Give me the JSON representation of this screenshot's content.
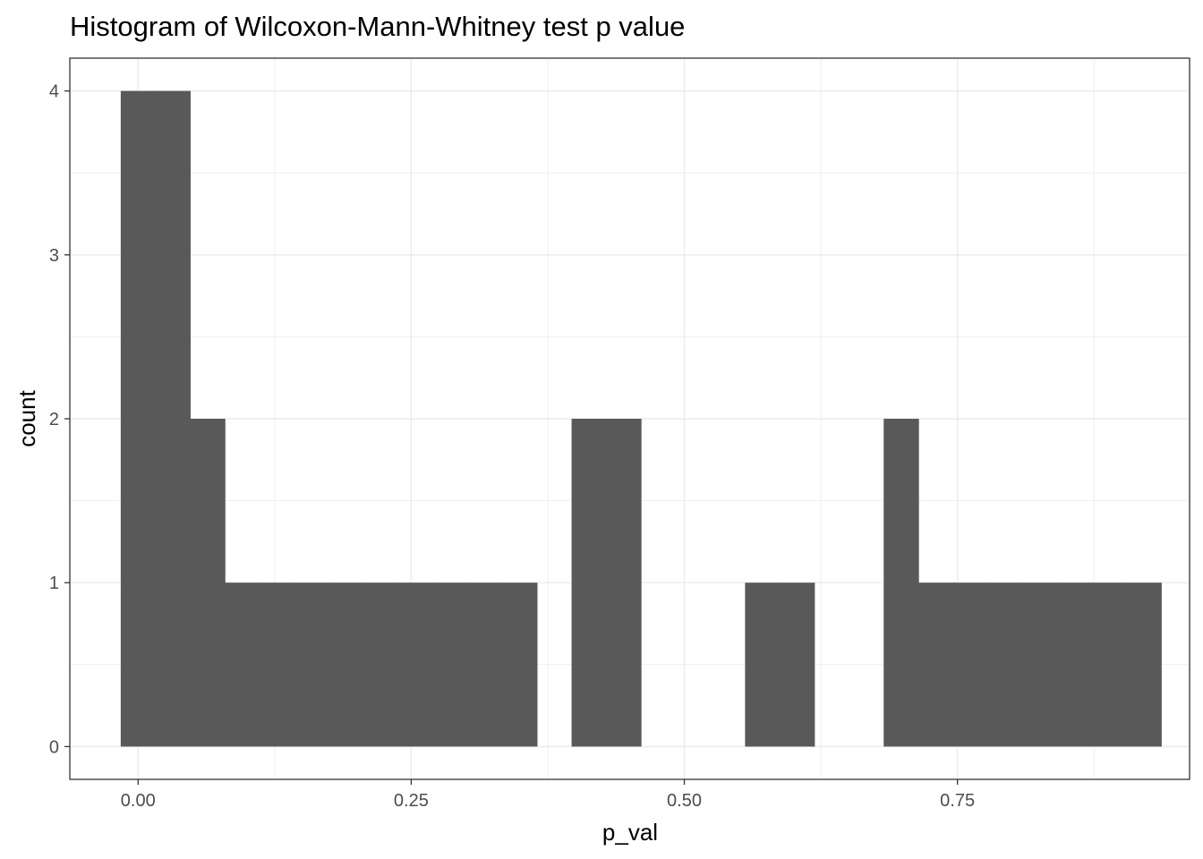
{
  "chart_data": {
    "type": "bar",
    "title": "Histogram of Wilcoxon-Mann-Whitney test p value",
    "xlabel": "p_val",
    "ylabel": "count",
    "xlim": [
      -0.0625,
      0.9625
    ],
    "ylim": [
      -0.2,
      4.2
    ],
    "x_ticks": [
      {
        "value": 0.0,
        "label": "0.00"
      },
      {
        "value": 0.25,
        "label": "0.25"
      },
      {
        "value": 0.5,
        "label": "0.50"
      },
      {
        "value": 0.75,
        "label": "0.75"
      }
    ],
    "y_ticks": [
      {
        "value": 0,
        "label": "0"
      },
      {
        "value": 1,
        "label": "1"
      },
      {
        "value": 2,
        "label": "2"
      },
      {
        "value": 3,
        "label": "3"
      },
      {
        "value": 4,
        "label": "4"
      }
    ],
    "bin_width": 0.0317,
    "bins": [
      {
        "x0": -0.0159,
        "x1": 0.0159,
        "count": 4
      },
      {
        "x0": 0.0159,
        "x1": 0.0476,
        "count": 4
      },
      {
        "x0": 0.0476,
        "x1": 0.0794,
        "count": 2
      },
      {
        "x0": 0.0794,
        "x1": 0.1111,
        "count": 1
      },
      {
        "x0": 0.1111,
        "x1": 0.1429,
        "count": 1
      },
      {
        "x0": 0.1429,
        "x1": 0.1746,
        "count": 1
      },
      {
        "x0": 0.1746,
        "x1": 0.2063,
        "count": 1
      },
      {
        "x0": 0.2063,
        "x1": 0.2381,
        "count": 1
      },
      {
        "x0": 0.2381,
        "x1": 0.2698,
        "count": 1
      },
      {
        "x0": 0.2698,
        "x1": 0.3016,
        "count": 1
      },
      {
        "x0": 0.3016,
        "x1": 0.3333,
        "count": 1
      },
      {
        "x0": 0.3333,
        "x1": 0.3651,
        "count": 1
      },
      {
        "x0": 0.3651,
        "x1": 0.3968,
        "count": 0
      },
      {
        "x0": 0.3968,
        "x1": 0.4286,
        "count": 2
      },
      {
        "x0": 0.4286,
        "x1": 0.4603,
        "count": 2
      },
      {
        "x0": 0.4603,
        "x1": 0.4921,
        "count": 0
      },
      {
        "x0": 0.4921,
        "x1": 0.5238,
        "count": 0
      },
      {
        "x0": 0.5238,
        "x1": 0.5556,
        "count": 0
      },
      {
        "x0": 0.5556,
        "x1": 0.5873,
        "count": 1
      },
      {
        "x0": 0.5873,
        "x1": 0.619,
        "count": 1
      },
      {
        "x0": 0.619,
        "x1": 0.6508,
        "count": 0
      },
      {
        "x0": 0.6508,
        "x1": 0.6825,
        "count": 0
      },
      {
        "x0": 0.6825,
        "x1": 0.7143,
        "count": 2
      },
      {
        "x0": 0.7143,
        "x1": 0.746,
        "count": 1
      },
      {
        "x0": 0.746,
        "x1": 0.7778,
        "count": 1
      },
      {
        "x0": 0.7778,
        "x1": 0.8095,
        "count": 1
      },
      {
        "x0": 0.8095,
        "x1": 0.8413,
        "count": 1
      },
      {
        "x0": 0.8413,
        "x1": 0.873,
        "count": 1
      },
      {
        "x0": 0.873,
        "x1": 0.9048,
        "count": 1
      },
      {
        "x0": 0.9048,
        "x1": 0.9365,
        "count": 1
      }
    ],
    "grid": true,
    "bar_color": "#595959",
    "grid_color": "#ebebeb",
    "panel_border_color": "#333333"
  }
}
